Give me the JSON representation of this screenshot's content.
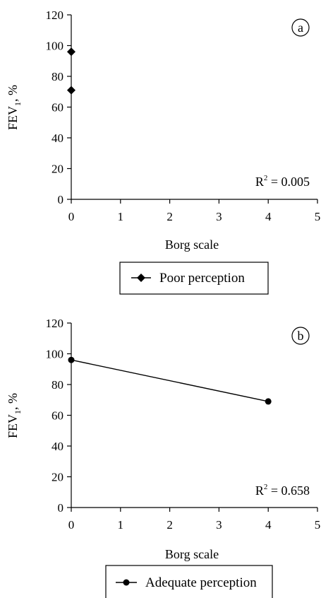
{
  "chart_data": [
    {
      "type": "scatter",
      "panel_label": "a",
      "x": [
        0,
        0
      ],
      "series": [
        {
          "name": "Poor perception",
          "x": [
            0,
            0
          ],
          "values": [
            96,
            71
          ],
          "marker": "diamond",
          "line": false
        }
      ],
      "xlabel": "Borg scale",
      "ylabel": "FEV",
      "ylabel_sub": "1",
      "ylabel_suffix": ", %",
      "xlim": [
        0,
        5
      ],
      "ylim": [
        0,
        120
      ],
      "xticks": [
        0,
        1,
        2,
        3,
        4,
        5
      ],
      "yticks": [
        0,
        20,
        40,
        60,
        80,
        100,
        120
      ],
      "r2_prefix": "R",
      "r2_sup": "2",
      "r2_value": " = 0.005",
      "legend_label": "Poor perception",
      "grid": false,
      "legend_position": "bottom"
    },
    {
      "type": "line",
      "panel_label": "b",
      "series": [
        {
          "name": "Adequate perception",
          "x": [
            0,
            4
          ],
          "values": [
            96,
            69
          ],
          "marker": "circle",
          "line": true
        }
      ],
      "xlabel": "Borg scale",
      "ylabel": "FEV",
      "ylabel_sub": "1",
      "ylabel_suffix": ", %",
      "xlim": [
        0,
        5
      ],
      "ylim": [
        0,
        120
      ],
      "xticks": [
        0,
        1,
        2,
        3,
        4,
        5
      ],
      "yticks": [
        0,
        20,
        40,
        60,
        80,
        100,
        120
      ],
      "r2_prefix": "R",
      "r2_sup": "2",
      "r2_value": " = 0.658",
      "legend_label": "Adequate perception",
      "grid": false,
      "legend_position": "bottom"
    }
  ],
  "colors": {
    "axis": "#000000",
    "marker": "#000000",
    "line": "#000000"
  }
}
